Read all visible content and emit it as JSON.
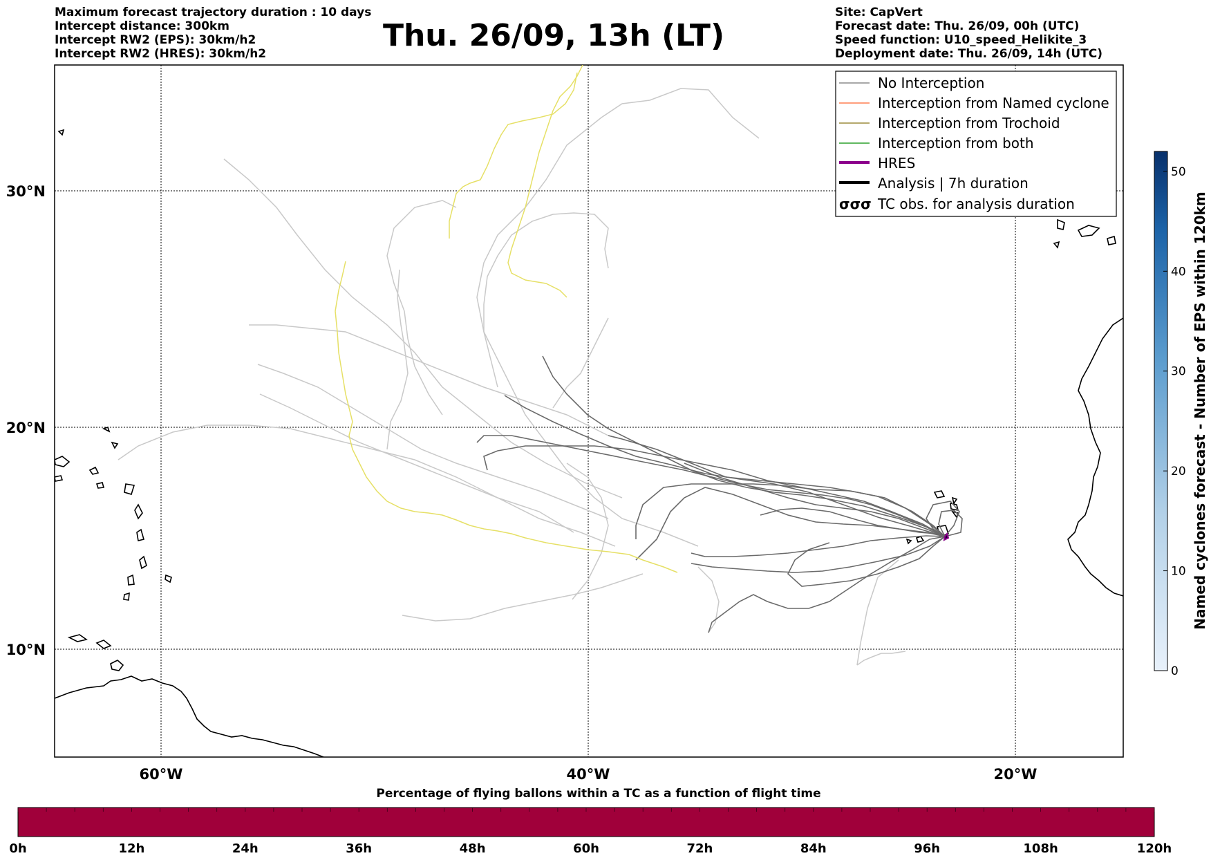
{
  "header_left": [
    "Maximum forecast trajectory duration : 10 days",
    "Intercept distance: 300km",
    "Intercept RW2 (EPS):  30km/h2",
    "Intercept RW2 (HRES): 30km/h2"
  ],
  "title": "Thu. 26/09, 13h (LT)",
  "header_right": [
    "Site: CapVert",
    "Forecast date: Thu. 26/09, 00h (UTC)",
    "Speed function: U10_speed_Helikite_3",
    "Deployment date: Thu. 26/09, 14h (UTC)"
  ],
  "map": {
    "lon_labels": [
      "60°W",
      "40°W",
      "20°W"
    ],
    "lat_labels": [
      "30°N",
      "20°N",
      "10°N"
    ],
    "grid": "dotted"
  },
  "legend": {
    "placement": "top-right",
    "entries": [
      {
        "label": "No Interception",
        "color": "#8c8c8c"
      },
      {
        "label": "Interception from Named cyclone",
        "color": "#ff7f50"
      },
      {
        "label": "Interception from Trochoid",
        "color": "#9b8c3c"
      },
      {
        "label": "Interception from both",
        "color": "#2ca02c"
      },
      {
        "label": "HRES",
        "color": "#8b008b"
      },
      {
        "label": "Analysis | 7h duration",
        "color": "#000000"
      },
      {
        "label": "TC obs. for analysis duration",
        "color": "#000000",
        "icon": "cyclone-symbol-icon"
      }
    ]
  },
  "colorbar_right": {
    "title": "Named cyclones forecast - Number of EPS within 120km",
    "ticks": [
      "0",
      "10",
      "20",
      "30",
      "40",
      "50"
    ],
    "range": [
      0,
      52
    ],
    "colors": [
      "#e8f1fb",
      "#08306b"
    ]
  },
  "colorbar_bottom": {
    "title": "Percentage of flying ballons within a TC as a function of flight time",
    "ticks": [
      "0h",
      "12h",
      "24h",
      "36h",
      "48h",
      "60h",
      "72h",
      "84h",
      "96h",
      "108h",
      "120h"
    ],
    "fill_color": "#a0003a"
  }
}
